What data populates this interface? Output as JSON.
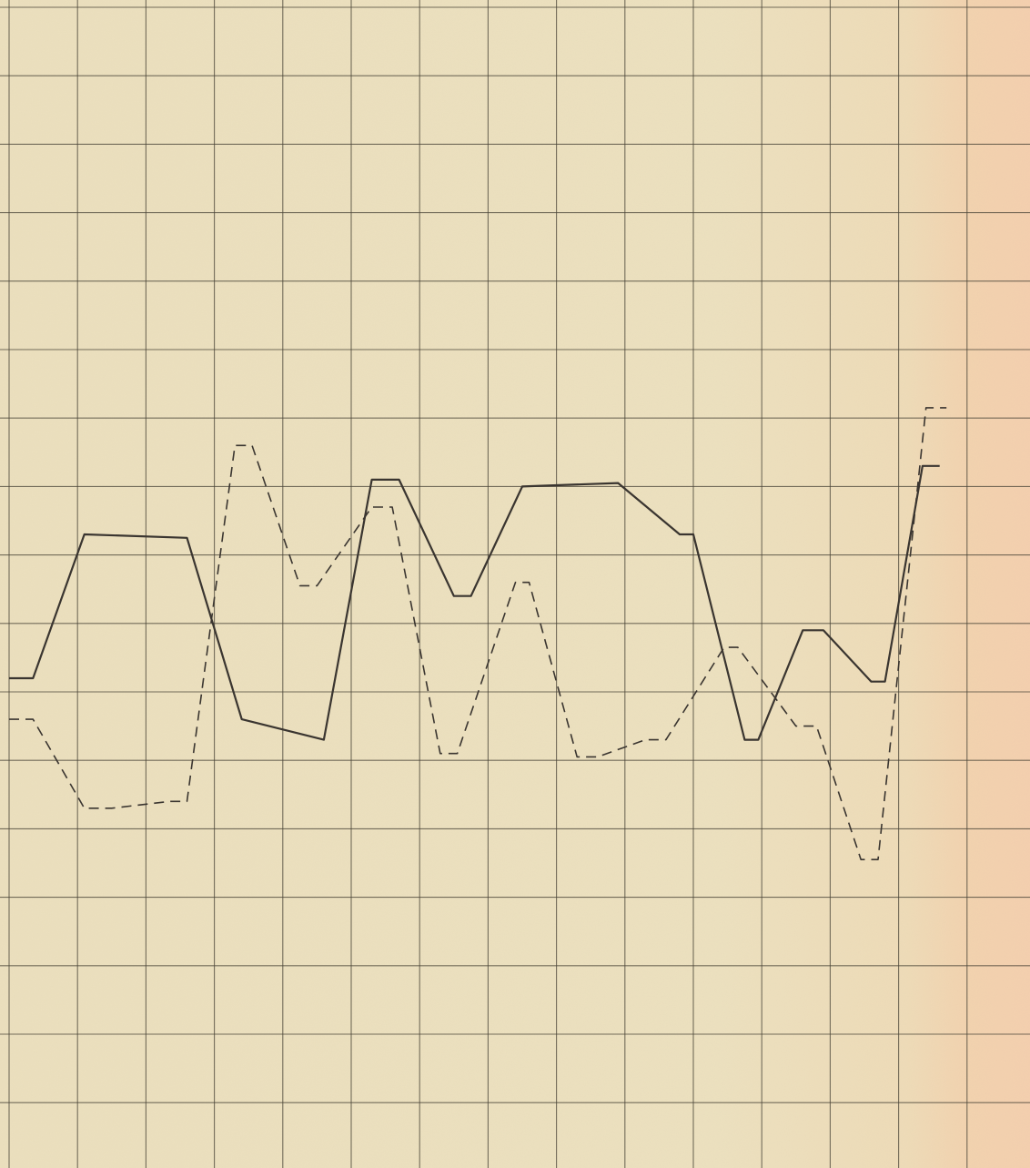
{
  "chart_data": {
    "type": "line",
    "title": "",
    "xlabel": "",
    "ylabel": "",
    "grid": true,
    "paper_color": "#ece0bf",
    "grid_color": "#4a4538",
    "line_color": "#3a3530",
    "x": [
      0.5,
      1,
      2,
      3,
      3.5,
      4.4,
      5.5,
      6.3,
      7,
      8,
      9,
      10,
      11,
      11.6,
      12.4,
      13.2,
      14,
      15,
      16,
      17,
      17.6,
      18,
      19,
      19.6,
      20.3,
      21,
      22,
      23,
      24,
      24.6,
      25,
      26,
      27
    ],
    "ylim": [
      0,
      17
    ],
    "series": [
      {
        "style": "solid",
        "points": [
          [
            0,
            7.2
          ],
          [
            0.35,
            7.2
          ],
          [
            1.1,
            9.3
          ],
          [
            2.6,
            9.25
          ],
          [
            3.4,
            6.6
          ],
          [
            4.6,
            6.3
          ],
          [
            5.3,
            10.1
          ],
          [
            5.7,
            10.1
          ],
          [
            6.5,
            8.4
          ],
          [
            6.75,
            8.4
          ],
          [
            7.5,
            10.0
          ],
          [
            8.9,
            10.05
          ],
          [
            9.8,
            9.3
          ],
          [
            10.0,
            9.3
          ],
          [
            10.75,
            6.3
          ],
          [
            10.95,
            6.3
          ],
          [
            11.6,
            7.9
          ],
          [
            11.9,
            7.9
          ],
          [
            12.6,
            7.15
          ],
          [
            12.8,
            7.15
          ],
          [
            13.35,
            10.3
          ],
          [
            13.6,
            10.3
          ]
        ]
      },
      {
        "style": "dashed",
        "points": [
          [
            0,
            6.6
          ],
          [
            0.35,
            6.6
          ],
          [
            1.1,
            5.3
          ],
          [
            1.5,
            5.3
          ],
          [
            2.35,
            5.4
          ],
          [
            2.6,
            5.4
          ],
          [
            3.3,
            10.6
          ],
          [
            3.55,
            10.6
          ],
          [
            4.25,
            8.55
          ],
          [
            4.5,
            8.55
          ],
          [
            5.3,
            9.7
          ],
          [
            5.6,
            9.7
          ],
          [
            6.3,
            6.1
          ],
          [
            6.55,
            6.1
          ],
          [
            7.4,
            8.6
          ],
          [
            7.6,
            8.6
          ],
          [
            8.3,
            6.05
          ],
          [
            8.6,
            6.05
          ],
          [
            9.3,
            6.3
          ],
          [
            9.6,
            6.3
          ],
          [
            10.45,
            7.65
          ],
          [
            10.65,
            7.65
          ],
          [
            11.5,
            6.5
          ],
          [
            11.8,
            6.5
          ],
          [
            12.45,
            4.55
          ],
          [
            12.7,
            4.55
          ],
          [
            13.4,
            11.15
          ],
          [
            13.7,
            11.15
          ]
        ]
      }
    ],
    "axis_extent": {
      "xmin": 0,
      "xmax": 15,
      "ymin": 0,
      "ymax": 17
    }
  }
}
